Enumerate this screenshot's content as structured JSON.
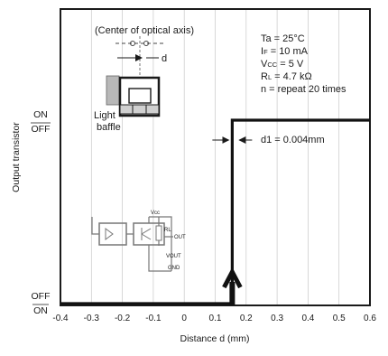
{
  "chart_data": {
    "type": "line",
    "xlabel": "Distance d (mm)",
    "ylabel": "Output transistor",
    "xlim": [
      -0.4,
      0.6
    ],
    "x_ticks": [
      "-0.4",
      "-0.3",
      "-0.2",
      "-0.1",
      "0",
      "0.1",
      "0.2",
      "0.3",
      "0.4",
      "0.5",
      "0.6"
    ],
    "y_states": {
      "top_on": "ON",
      "top_off": "OFF",
      "bottom_off": "OFF",
      "bottom_on": "ON"
    },
    "grid": true,
    "series": [
      {
        "points": [
          {
            "x": -0.4,
            "y": 0
          },
          {
            "x": 0.155,
            "y": 0
          },
          {
            "x": 0.155,
            "y": 1
          },
          {
            "x": 0.6,
            "y": 1
          }
        ]
      }
    ],
    "conditions": [
      {
        "main": "Ta = 25°C",
        "sub": "",
        "rest": ""
      },
      {
        "main": "I",
        "sub": "F",
        "rest": " = 10 mA"
      },
      {
        "main": "V",
        "sub": "CC",
        "rest": " = 5 V"
      },
      {
        "main": "R",
        "sub": "L",
        "rest": " = 4.7 kΩ"
      },
      {
        "main": "n = repeat 20 times",
        "sub": "",
        "rest": ""
      }
    ],
    "annotations": {
      "optical_axis": "(Center of optical axis)",
      "d_label": "d",
      "baffle_line1": "Light",
      "baffle_line2": "baffle",
      "d1_label": "d1 = 0.004mm",
      "circuit_labels": [
        "Vcc",
        "RL",
        "OUT",
        "VOUT",
        "GND"
      ]
    }
  }
}
